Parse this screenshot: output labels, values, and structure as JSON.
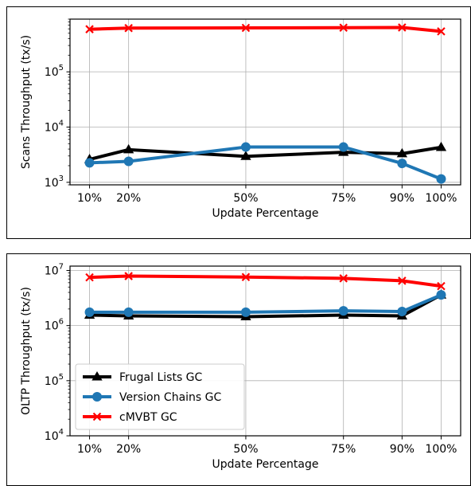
{
  "chart_data": [
    {
      "type": "line",
      "xlabel": "Update Percentage",
      "ylabel": "Scans Throughput (tx/s)",
      "yscale": "log",
      "ylim": [
        900,
        900000
      ],
      "x": [
        10,
        20,
        50,
        75,
        90,
        100
      ],
      "x_tick_labels": [
        "10%",
        "20%",
        "50%",
        "75%",
        "90%",
        "100%"
      ],
      "y_tick_labels": [
        {
          "mantissa": "10",
          "exp": "3",
          "value": 1000
        },
        {
          "mantissa": "10",
          "exp": "4",
          "value": 10000
        },
        {
          "mantissa": "10",
          "exp": "5",
          "value": 100000
        }
      ],
      "grid": true,
      "legend": false,
      "series": [
        {
          "name": "Frugal Lists GC",
          "color": "#000000",
          "marker": "triangle",
          "values": [
            2600,
            3900,
            2950,
            3500,
            3300,
            4300
          ]
        },
        {
          "name": "Version Chains GC",
          "color": "#1f77b4",
          "marker": "circle",
          "values": [
            2250,
            2400,
            4350,
            4350,
            2200,
            1150
          ]
        },
        {
          "name": "cMVBT GC",
          "color": "#ff0000",
          "marker": "x",
          "values": [
            590000,
            620000,
            625000,
            630000,
            635000,
            540000
          ]
        }
      ]
    },
    {
      "type": "line",
      "xlabel": "Update Percentage",
      "ylabel": "OLTP Throughput (tx/s)",
      "yscale": "log",
      "ylim": [
        10000,
        12000000
      ],
      "x": [
        10,
        20,
        50,
        75,
        90,
        100
      ],
      "x_tick_labels": [
        "10%",
        "20%",
        "50%",
        "75%",
        "90%",
        "100%"
      ],
      "y_tick_labels": [
        {
          "mantissa": "10",
          "exp": "4",
          "value": 10000
        },
        {
          "mantissa": "10",
          "exp": "5",
          "value": 100000
        },
        {
          "mantissa": "10",
          "exp": "6",
          "value": 1000000
        },
        {
          "mantissa": "10",
          "exp": "7",
          "value": 10000000
        }
      ],
      "grid": true,
      "legend": "lower-left",
      "series": [
        {
          "name": "Frugal Lists GC",
          "color": "#000000",
          "marker": "triangle",
          "values": [
            1550000,
            1500000,
            1450000,
            1550000,
            1500000,
            3600000
          ]
        },
        {
          "name": "Version Chains GC",
          "color": "#1f77b4",
          "marker": "circle",
          "values": [
            1750000,
            1750000,
            1750000,
            1850000,
            1800000,
            3600000
          ]
        },
        {
          "name": "cMVBT GC",
          "color": "#ff0000",
          "marker": "x",
          "values": [
            7500000,
            7900000,
            7600000,
            7200000,
            6500000,
            5200000
          ]
        }
      ]
    }
  ]
}
